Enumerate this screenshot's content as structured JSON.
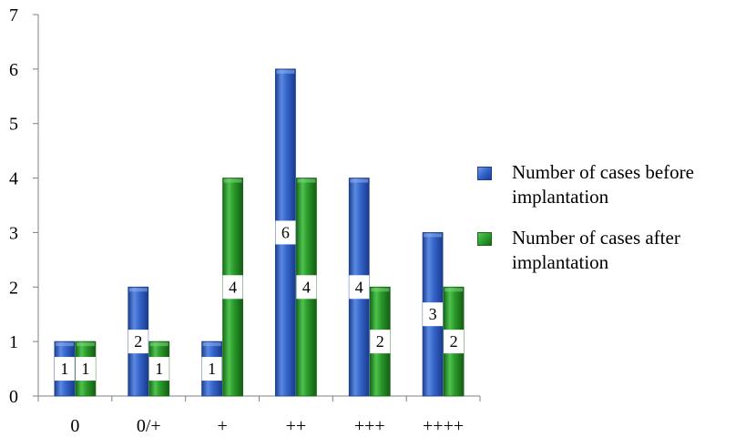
{
  "chart_data": {
    "type": "bar",
    "categories": [
      "0",
      "0/+",
      "+",
      "++",
      "+++",
      "++++"
    ],
    "series": [
      {
        "name": "Number of cases before implantation",
        "values": [
          1,
          2,
          1,
          6,
          4,
          3
        ],
        "color": "#2f5fc4"
      },
      {
        "name": "Number of cases after implantation",
        "values": [
          1,
          1,
          4,
          4,
          2,
          2
        ],
        "color": "#2a9a2a"
      }
    ],
    "y_ticks": [
      "0",
      "1",
      "2",
      "3",
      "4",
      "5",
      "6",
      "7"
    ],
    "ylim": [
      0,
      7
    ],
    "title": "",
    "xlabel": "",
    "ylabel": "",
    "grid": false,
    "legend_position": "right"
  }
}
